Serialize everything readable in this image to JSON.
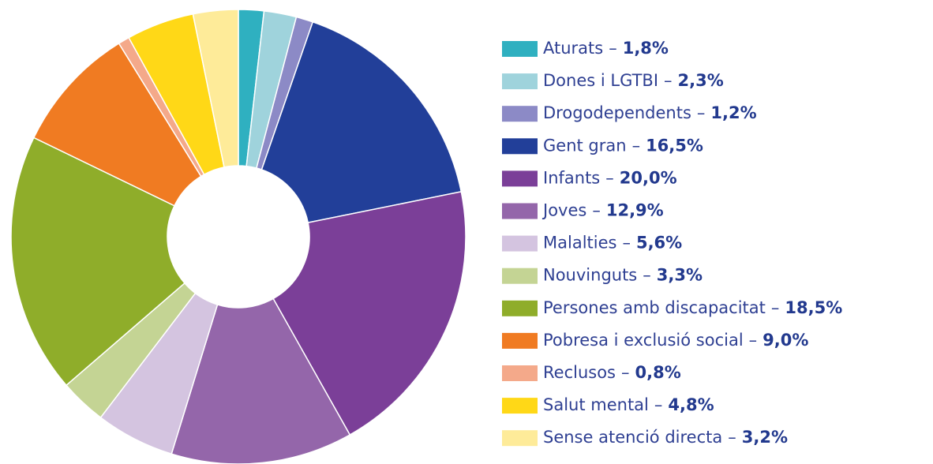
{
  "chart_data": {
    "type": "pie",
    "categories": [
      "Aturats",
      "Dones i LGTBI",
      "Drogodependents",
      "Gent gran",
      "Infants",
      "Joves",
      "Malalties",
      "Nouvinguts",
      "Persones amb discapacitat",
      "Pobresa i exclusió social",
      "Reclusos",
      "Salut mental",
      "Sense atenció directa"
    ],
    "values": [
      1.8,
      2.3,
      1.2,
      16.5,
      20.0,
      12.9,
      5.6,
      3.3,
      18.5,
      9.0,
      0.8,
      4.8,
      3.2
    ],
    "value_labels": [
      "1,8%",
      "2,3%",
      "1,2%",
      "16,5%",
      "20,0%",
      "12,9%",
      "5,6%",
      "3,3%",
      "18,5%",
      "9,0%",
      "0,8%",
      "4,8%",
      "3,2%"
    ],
    "colors": [
      "#2fb0c0",
      "#9fd3dc",
      "#8c8ac6",
      "#223f99",
      "#7b3f98",
      "#9466aa",
      "#d4c4e0",
      "#c4d494",
      "#8fad2a",
      "#f07b22",
      "#f4a98a",
      "#ffd817",
      "#feeb99"
    ],
    "label_separator": "–",
    "legend": "right"
  }
}
